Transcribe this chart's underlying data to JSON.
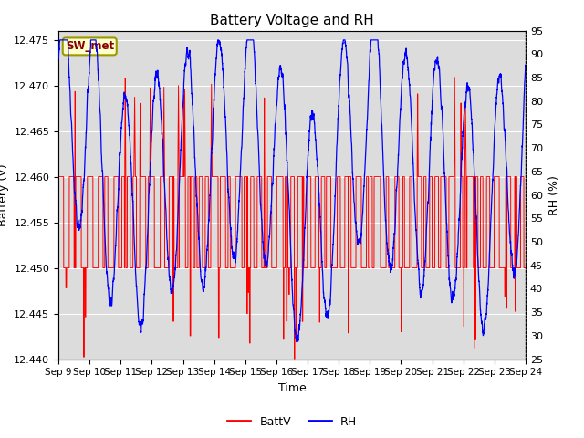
{
  "title": "Battery Voltage and RH",
  "xlabel": "Time",
  "ylabel_left": "Battery (V)",
  "ylabel_right": "RH (%)",
  "ylim_left": [
    12.44,
    12.476
  ],
  "ylim_right": [
    25,
    95
  ],
  "yticks_left": [
    12.44,
    12.445,
    12.45,
    12.455,
    12.46,
    12.465,
    12.47,
    12.475
  ],
  "yticks_right": [
    25,
    30,
    35,
    40,
    45,
    50,
    55,
    60,
    65,
    70,
    75,
    80,
    85,
    90,
    95
  ],
  "xtick_labels": [
    "Sep 9",
    "Sep 10",
    "Sep 11",
    "Sep 12",
    "Sep 13",
    "Sep 14",
    "Sep 15",
    "Sep 16",
    "Sep 17",
    "Sep 18",
    "Sep 19",
    "Sep 20",
    "Sep 21",
    "Sep 22",
    "Sep 23",
    "Sep 24"
  ],
  "background_color": "#ffffff",
  "plot_bg_color": "#dcdcdc",
  "grid_color": "#ffffff",
  "batt_color": "#ff0000",
  "rh_color": "#0000ff",
  "legend_label_batt": "BattV",
  "legend_label_rh": "RH",
  "station_label": "SW_met",
  "station_label_bg": "#ffffcc",
  "station_label_border": "#999900",
  "station_label_color": "#880000",
  "title_fontsize": 11,
  "label_fontsize": 9,
  "tick_fontsize": 8,
  "n_days": 15,
  "batt_low": 12.45,
  "batt_high": 12.46,
  "batt_spike_high": 12.47,
  "rh_low_night": 80,
  "rh_high_night": 92,
  "rh_low_day": 42,
  "rh_high_day": 55
}
